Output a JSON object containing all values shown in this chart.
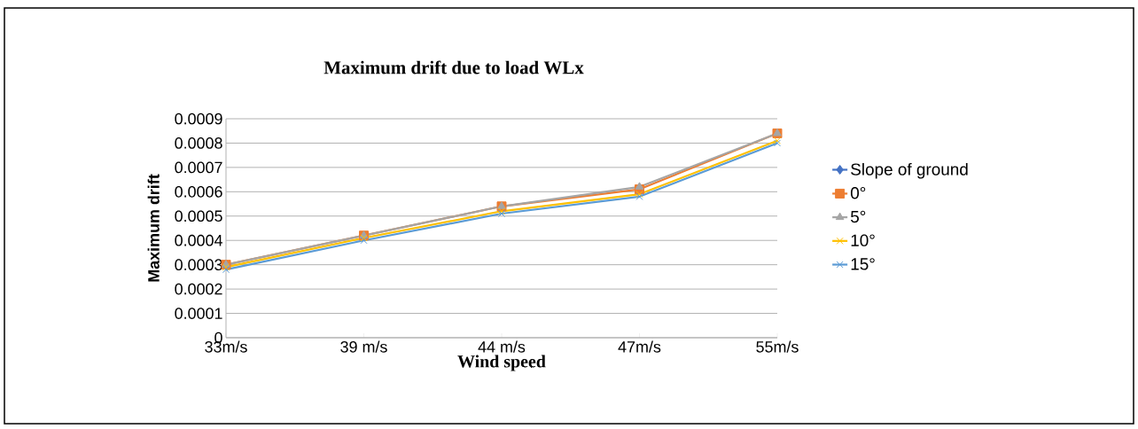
{
  "chart_data": {
    "type": "line",
    "title": "Maximum drift due to load  WLx",
    "xlabel": "Wind speed",
    "ylabel": "Maximum drift",
    "categories": [
      "33m/s",
      "39 m/s",
      "44 m/s",
      "47m/s",
      "55m/s"
    ],
    "series": [
      {
        "name": "Slope of ground",
        "color": "#4472c4",
        "marker": "diamond",
        "values": [
          null,
          null,
          null,
          null,
          null
        ]
      },
      {
        "name": "0°",
        "color": "#ed7d31",
        "marker": "square",
        "values": [
          0.0003,
          0.00042,
          0.00054,
          0.00061,
          0.00084
        ]
      },
      {
        "name": "5°",
        "color": "#a5a5a5",
        "marker": "triangle",
        "values": [
          0.0003,
          0.00042,
          0.00054,
          0.00062,
          0.00084
        ]
      },
      {
        "name": "10°",
        "color": "#ffc000",
        "marker": "cross",
        "values": [
          0.00029,
          0.00041,
          0.00052,
          0.00059,
          0.00081
        ]
      },
      {
        "name": "15°",
        "color": "#5b9bd5",
        "marker": "cross",
        "values": [
          0.00028,
          0.0004,
          0.00051,
          0.00058,
          0.0008
        ]
      }
    ],
    "ylim": [
      0,
      0.0009
    ],
    "yticks": [
      0,
      0.0001,
      0.0002,
      0.0003,
      0.0004,
      0.0005,
      0.0006,
      0.0007,
      0.0008,
      0.0009
    ],
    "grid": "y",
    "legend": "right"
  }
}
